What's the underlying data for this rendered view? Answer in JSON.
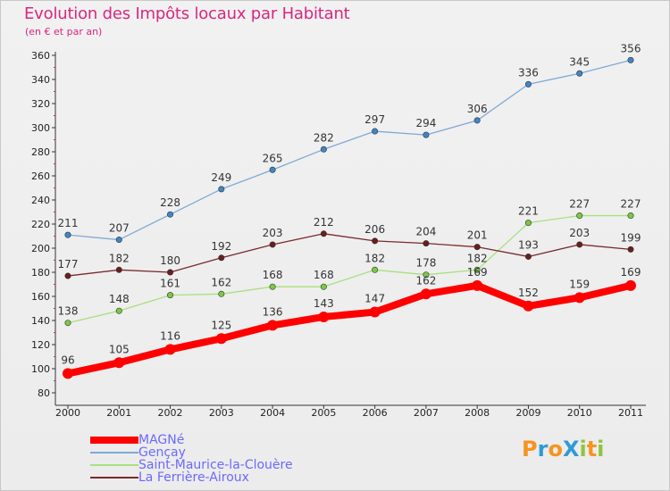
{
  "title": "Evolution des Impôts locaux par Habitant",
  "subtitle": "(en € et par an)",
  "logo_text": "ProXiti",
  "chart_data": {
    "type": "line",
    "x": [
      "2000",
      "2001",
      "2002",
      "2003",
      "2004",
      "2005",
      "2006",
      "2007",
      "2008",
      "2009",
      "2010",
      "2011"
    ],
    "ylim": [
      80,
      360
    ],
    "yticks": [
      80,
      100,
      120,
      140,
      160,
      180,
      200,
      220,
      240,
      260,
      280,
      300,
      320,
      340,
      360
    ],
    "grid": false,
    "legend_position": "bottom-left",
    "series": [
      {
        "name": "Gençay",
        "color": "#7fa9d6",
        "marker": "#3f86c8",
        "values": [
          211,
          207,
          228,
          249,
          265,
          282,
          297,
          294,
          306,
          336,
          345,
          356
        ]
      },
      {
        "name": "Saint-Maurice-la-Clouère",
        "color": "#a9e07f",
        "marker": "#7ac943",
        "values": [
          138,
          148,
          161,
          162,
          168,
          168,
          182,
          178,
          182,
          221,
          227,
          227
        ]
      },
      {
        "name": "La Ferrière-Airoux",
        "color": "#7a2a2a",
        "marker": "#6b1d1d",
        "values": [
          177,
          182,
          180,
          192,
          203,
          212,
          206,
          204,
          201,
          193,
          203,
          199
        ]
      },
      {
        "name": "MAGNé",
        "color": "#ff0000",
        "marker": "#ff0000",
        "values": [
          96,
          105,
          116,
          125,
          136,
          143,
          147,
          162,
          169,
          152,
          159,
          169
        ]
      }
    ]
  }
}
